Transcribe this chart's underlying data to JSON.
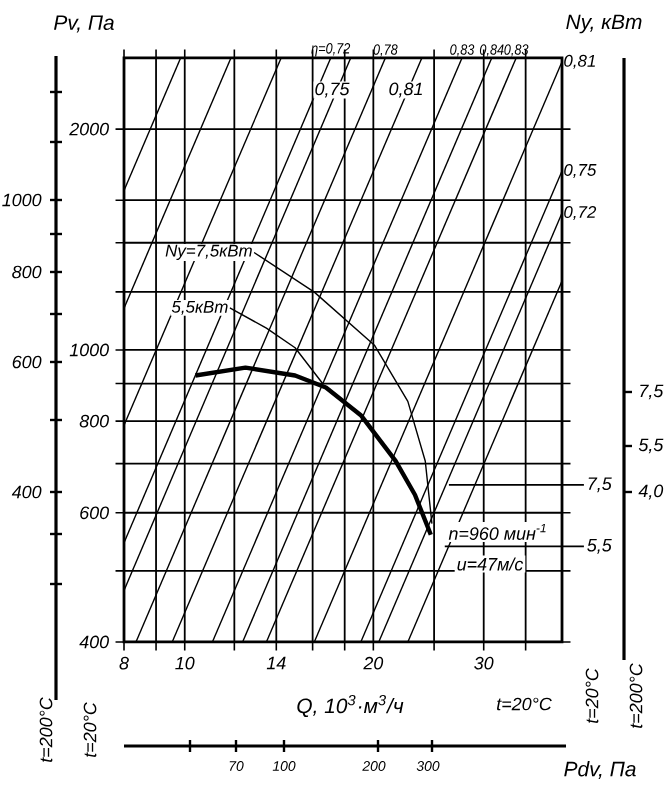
{
  "chart_data": {
    "type": "line",
    "ylabel": "Pv, Па",
    "xlabel": "Q, 10$^{3}$·м$^{3}$/ч",
    "x2label": "Pdv, Па",
    "y3label": "Ny, кВт",
    "xlim": [
      8,
      40
    ],
    "ylim": [
      400,
      2500
    ],
    "log": "xy",
    "grid": true,
    "xticks": [
      8,
      {
        "value": 9,
        "label": null
      },
      10,
      {
        "value": 12,
        "label": null
      },
      14,
      {
        "value": 16,
        "label": null
      },
      {
        "value": 18,
        "label": null
      },
      20,
      {
        "value": 25,
        "label": null
      },
      30,
      {
        "value": 35,
        "label": null
      }
    ],
    "yticks": [
      400,
      {
        "value": 500,
        "label": null
      },
      600,
      {
        "value": 700,
        "label": null
      },
      800,
      {
        "value": 900,
        "label": null
      },
      1000,
      {
        "value": 1200,
        "label": null
      },
      {
        "value": 1400,
        "label": null
      },
      {
        "value": 1600,
        "label": null
      },
      2000
    ],
    "series": [
      {
        "color": "#000000",
        "x": [
          10.4,
          12.5,
          15.0,
          16.8,
          19.1,
          21.7,
          23.3,
          24.7
        ],
        "values": [
          923,
          946,
          923,
          889,
          815,
          706,
          635,
          560
        ]
      },
      {
        "color": "#000000",
        "x": [
          12.9,
          16.1,
          20.1,
          22.7,
          24.2,
          24.8
        ],
        "values": [
          1358,
          1199,
          1014,
          851,
          706,
          580
        ]
      },
      {
        "color": "#000000",
        "x": [
          11.8,
          13.5,
          15.0,
          16.6
        ],
        "values": [
          1141,
          1071,
          1007,
          900
        ]
      },
      {
        "type": "line",
        "color": "#000000",
        "x": [
          8,
          9.85
        ],
        "values": [
          1650,
          2500
        ]
      },
      {
        "type": "line",
        "color": "#000000",
        "x": [
          8,
          11.85
        ],
        "values": [
          1140,
          2500
        ]
      },
      {
        "type": "line",
        "color": "#000000",
        "x": [
          8,
          14.25
        ],
        "values": [
          790,
          2500
        ]
      },
      {
        "type": "line",
        "color": "#000000",
        "x": [
          8,
          17.1
        ],
        "values": [
          546,
          2500
        ]
      },
      {
        "type": "line",
        "color": "#000000",
        "x": [
          8,
          18.4
        ],
        "values": [
          470,
          2500
        ]
      },
      {
        "type": "line",
        "color": "#000000",
        "x": [
          8.36,
          20.9
        ],
        "values": [
          400,
          2500
        ]
      },
      {
        "type": "line",
        "color": "#000000",
        "x": [
          9.55,
          23.9
        ],
        "values": [
          400,
          2500
        ]
      },
      {
        "type": "line",
        "color": "#000000",
        "x": [
          11.07,
          27.7
        ],
        "values": [
          400,
          2500
        ]
      },
      {
        "type": "line",
        "color": "#000000",
        "x": [
          12.37,
          30.9
        ],
        "values": [
          400,
          2500
        ]
      },
      {
        "type": "line",
        "color": "#000000",
        "x": [
          13.5,
          33.8
        ],
        "values": [
          400,
          2500
        ]
      },
      {
        "type": "line",
        "color": "#000000",
        "x": [
          16.1,
          40
        ],
        "values": [
          400,
          2470
        ]
      },
      {
        "type": "line",
        "color": "#000000",
        "x": [
          19.1,
          40
        ],
        "values": [
          400,
          1754
        ]
      },
      {
        "type": "line",
        "color": "#000000",
        "x": [
          20.4,
          40
        ],
        "values": [
          400,
          1537
        ]
      },
      {
        "type": "line",
        "color": "#000000",
        "x": [
          22.7,
          40
        ],
        "values": [
          400,
          1242
        ]
      }
    ],
    "annotations": [
      "t=200°C",
      "t=20°C",
      "t=20°C",
      "t=200°C",
      "t=20°C",
      "n=960 мин$^{-1}$",
      "u=47м/с",
      "0,75",
      "0,81",
      "400",
      "600",
      "800",
      "1000",
      "4,0",
      "5,5",
      "7,5",
      "70",
      "100",
      "200",
      "300",
      {
        "text": "η=0,72",
        "x": 17.1,
        "y": 2500
      },
      {
        "text": "0,78",
        "x": 20.9,
        "y": 2500
      },
      {
        "text": "0,83",
        "x": 27.7,
        "y": 2500
      },
      {
        "text": "0,84",
        "x": 30.9,
        "y": 2500
      },
      {
        "text": "0,83",
        "x": 33.8,
        "y": 2500
      },
      {
        "text": "0,81",
        "x": 40,
        "y": 2470
      },
      {
        "text": "0,75",
        "x": 40,
        "y": 1754
      },
      {
        "text": "0,72",
        "x": 40,
        "y": 1537
      },
      {
        "text": "Ny=7,5кВт",
        "x": 12.9,
        "y": 1358
      },
      {
        "text": "5,5кВт",
        "x": 11.8,
        "y": 1141
      },
      {
        "text": "7,5",
        "x": 26.4,
        "y": 655
      },
      {
        "text": "5,5",
        "x": 26,
        "y": 540
      }
    ]
  }
}
